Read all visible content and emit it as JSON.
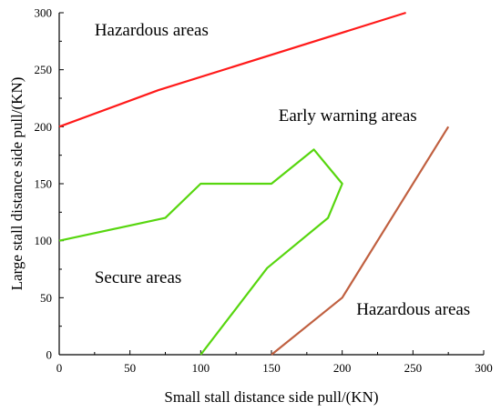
{
  "chart_data": {
    "type": "line",
    "xlabel": "Small stall distance side pull/(KN)",
    "ylabel": "Large stall distance side pull/(KN)",
    "xlim": [
      0,
      300
    ],
    "ylim": [
      0,
      300
    ],
    "xticks": [
      "0",
      "50",
      "100",
      "150",
      "200",
      "250",
      "300"
    ],
    "yticks": [
      "0",
      "50",
      "100",
      "150",
      "200",
      "250",
      "300"
    ],
    "grid": false,
    "legend": "none",
    "series": [
      {
        "color": "#ff1a1a",
        "points": [
          [
            0,
            200
          ],
          [
            70,
            232
          ],
          [
            245,
            300
          ]
        ]
      },
      {
        "color": "#57d60f",
        "points": [
          [
            0,
            100
          ],
          [
            75,
            120
          ],
          [
            100,
            150
          ],
          [
            150,
            150
          ],
          [
            180,
            180
          ],
          [
            200,
            150
          ],
          [
            190,
            120
          ],
          [
            147,
            76
          ],
          [
            100,
            0
          ]
        ]
      },
      {
        "color": "#c06040",
        "points": [
          [
            150,
            0
          ],
          [
            200,
            50
          ],
          [
            275,
            200
          ]
        ]
      }
    ],
    "annotations": [
      {
        "text": "Hazardous areas",
        "x": 25,
        "y": 280
      },
      {
        "text": "Early warning areas",
        "x": 155,
        "y": 205
      },
      {
        "text": "Secure areas",
        "x": 25,
        "y": 63
      },
      {
        "text": "Hazardous areas",
        "x": 210,
        "y": 35
      }
    ]
  }
}
